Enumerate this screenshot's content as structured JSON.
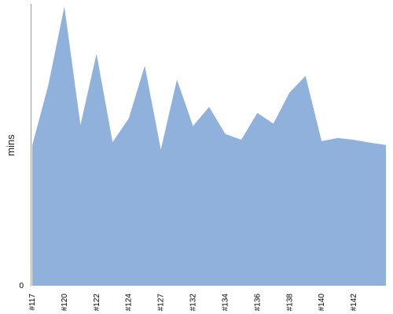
{
  "chart_data": {
    "type": "area",
    "title": "",
    "xlabel": "",
    "ylabel": "mins",
    "grid": false,
    "legend": "none",
    "fill_color": "#8fb1dc",
    "axis_color": "#999999",
    "y_tick_labels": [
      "0"
    ],
    "x_tick_labels": [
      "#117",
      "#120",
      "#122",
      "#124",
      "#127",
      "#132",
      "#134",
      "#136",
      "#138",
      "#140",
      "#142"
    ],
    "ylim": [
      0,
      60
    ],
    "series": [
      {
        "values": [
          30.3,
          43.3,
          60.3,
          34.7,
          50.1,
          31.0,
          36.1,
          47.5,
          29.4,
          44.5,
          34.5,
          38.6,
          32.8,
          31.5,
          37.3,
          35.0,
          41.7,
          45.3,
          31.2,
          31.9,
          31.5,
          30.9,
          30.4
        ]
      }
    ]
  }
}
